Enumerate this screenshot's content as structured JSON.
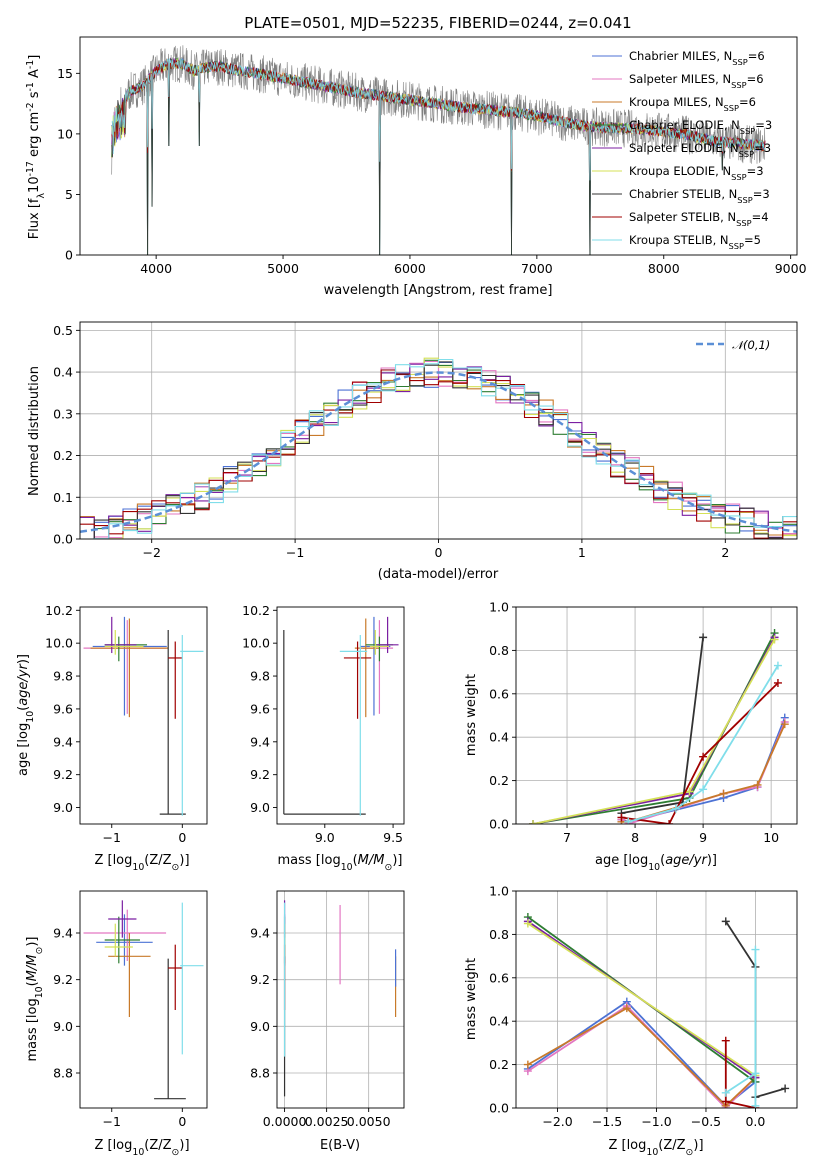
{
  "chart_data": [
    {
      "id": "spectrum",
      "type": "line",
      "title": "PLATE=0501, MJD=52235, FIBERID=0244, z=0.041",
      "xlabel": "wavelength [Angstrom, rest frame]",
      "ylabel": "Flux [f$_\\lambda$10$^{-17}$ erg cm$^{-2}$ s$^{-1}$ A$^{-1}$]",
      "xlim": [
        3400,
        9050
      ],
      "ylim": [
        0,
        18
      ],
      "xticks": [
        4000,
        5000,
        6000,
        7000,
        8000,
        9000
      ],
      "yticks": [
        0,
        5,
        10,
        15
      ],
      "legend_loc": "upper right",
      "series": [
        {
          "name": "Chabrier MILES, N$_{SSP}$=6",
          "color": "#4c72d4"
        },
        {
          "name": "Salpeter MILES, N$_{SSP}$=6",
          "color": "#e377c2"
        },
        {
          "name": "Kroupa MILES, N$_{SSP}$=6",
          "color": "#c87a2a"
        },
        {
          "name": "Chabrier ELODIE, N$_{SSP}$=3",
          "color": "#2e7d32"
        },
        {
          "name": "Salpeter ELODIE, N$_{SSP}$=3",
          "color": "#7b1fa2"
        },
        {
          "name": "Kroupa ELODIE, N$_{SSP}$=3",
          "color": "#d4e157"
        },
        {
          "name": "Chabrier STELIB, N$_{SSP}$=3",
          "color": "#333333"
        },
        {
          "name": "Salpeter STELIB, N$_{SSP}$=4",
          "color": "#a00000"
        },
        {
          "name": "Kroupa STELIB, N$_{SSP}$=5",
          "color": "#80deea"
        }
      ],
      "data_series": {
        "name": "data",
        "color": "#808080"
      },
      "continuum_knots": {
        "x": [
          3650,
          3700,
          3800,
          3900,
          4000,
          4100,
          4200,
          4300,
          4400,
          4500,
          4600,
          4800,
          5000,
          5200,
          5400,
          5600,
          5800,
          6000,
          6200,
          6400,
          6600,
          6800,
          7000,
          7200,
          7400,
          7600,
          7800,
          8000,
          8200,
          8400,
          8600,
          8800
        ],
        "y": [
          11.0,
          12.5,
          13.5,
          14.0,
          15.2,
          15.8,
          15.8,
          15.2,
          15.5,
          15.6,
          15.3,
          15.0,
          14.6,
          14.2,
          13.8,
          13.4,
          13.1,
          12.8,
          12.5,
          12.2,
          12.0,
          11.8,
          11.5,
          11.0,
          10.6,
          10.5,
          10.4,
          10.2,
          9.9,
          9.4,
          9.2,
          9.0
        ]
      },
      "absorption_dips": [
        {
          "x": 3934,
          "y": 0
        },
        {
          "x": 3969,
          "y": 4
        },
        {
          "x": 4102,
          "y": 9
        },
        {
          "x": 4340,
          "y": 9
        },
        {
          "x": 5760,
          "y": 0
        },
        {
          "x": 6800,
          "y": 0
        },
        {
          "x": 7420,
          "y": 0
        },
        {
          "x": 8460,
          "y": 7
        }
      ]
    },
    {
      "id": "residual-histogram",
      "type": "bar",
      "xlabel": "(data-model)/error",
      "ylabel": "Normed distribution",
      "xlim": [
        -2.5,
        2.5
      ],
      "ylim": [
        0,
        0.52
      ],
      "xticks": [
        -2,
        -1,
        0,
        1,
        2
      ],
      "yticks": [
        0.0,
        0.1,
        0.2,
        0.3,
        0.4,
        0.5
      ],
      "ytick_labels": [
        "0.0",
        "0.1",
        "0.2",
        "0.3",
        "0.4",
        "0.5"
      ],
      "bin_width": 0.1,
      "legend": [
        {
          "name": "$\\mathcal{N}(0,1)$",
          "color": "#5b8fd6",
          "style": "dashed"
        }
      ],
      "series_colors": [
        "#4c72d4",
        "#e377c2",
        "#c87a2a",
        "#2e7d32",
        "#7b1fa2",
        "#d4e157",
        "#333333",
        "#a00000",
        "#80deea"
      ],
      "overlay": "normal pdf"
    },
    {
      "id": "age-vs-z",
      "type": "scatter",
      "xlabel": "Z [log$_{10}$(Z/Z$_\\odot$)]",
      "ylabel": "age  [log$_{10}$($age/yr$)]",
      "xlim": [
        -1.45,
        0.35
      ],
      "ylim": [
        8.9,
        10.22
      ],
      "xticks": [
        -1,
        0
      ],
      "yticks": [
        9.0,
        9.2,
        9.4,
        9.6,
        9.8,
        10.0,
        10.2
      ],
      "ytick_labels": [
        "9.0",
        "9.2",
        "9.4",
        "9.6",
        "9.8",
        "10.0",
        "10.2"
      ],
      "points": [
        {
          "color": "#4c72d4",
          "x": -0.82,
          "xerr": [
            0.45,
            0.6
          ],
          "y": 9.98,
          "yerr": [
            0.42,
            0.18
          ]
        },
        {
          "color": "#e377c2",
          "x": -0.78,
          "xerr": [
            0.62,
            0.55
          ],
          "y": 9.97,
          "yerr": [
            0.4,
            0.17
          ]
        },
        {
          "color": "#c87a2a",
          "x": -0.75,
          "xerr": [
            0.55,
            0.55
          ],
          "y": 9.97,
          "yerr": [
            0.42,
            0.18
          ]
        },
        {
          "color": "#2e7d32",
          "x": -0.9,
          "xerr": [
            0.2,
            0.4
          ],
          "y": 9.99,
          "yerr": [
            0.1,
            0.05
          ]
        },
        {
          "color": "#7b1fa2",
          "x": -1.0,
          "xerr": [
            0.1,
            0.35
          ],
          "y": 9.99,
          "yerr": [
            0.05,
            0.17
          ]
        },
        {
          "color": "#d4e157",
          "x": -0.95,
          "xerr": [
            0.15,
            0.4
          ],
          "y": 9.98,
          "yerr": [
            0.05,
            0.1
          ]
        },
        {
          "color": "#333333",
          "x": -0.2,
          "xerr": [
            0.12,
            0.25
          ],
          "y": 8.96,
          "yerr": [
            0,
            1.12
          ]
        },
        {
          "color": "#a00000",
          "x": -0.1,
          "xerr": [
            0.1,
            0.1
          ],
          "y": 9.91,
          "yerr": [
            0.37,
            0.1
          ]
        },
        {
          "color": "#80deea",
          "x": 0.0,
          "xerr": [
            0.03,
            0.3
          ],
          "y": 9.95,
          "yerr": [
            1.0,
            0.1
          ]
        }
      ]
    },
    {
      "id": "age-vs-mass",
      "type": "scatter",
      "xlabel": "mass [log$_{10}$($M/M_\\odot$)]",
      "ylabel": "",
      "xlim": [
        8.65,
        9.58
      ],
      "ylim": [
        8.9,
        10.22
      ],
      "xticks": [
        9.0,
        9.5
      ],
      "xtick_labels": [
        "9.0",
        "9.5"
      ],
      "yticks": [
        9.0,
        9.2,
        9.4,
        9.6,
        9.8,
        10.0,
        10.2
      ],
      "ytick_labels": [
        "9.0",
        "9.2",
        "9.4",
        "9.6",
        "9.8",
        "10.0",
        "10.2"
      ],
      "points": [
        {
          "color": "#4c72d4",
          "x": 9.36,
          "xerr": [
            0.1,
            0.12
          ],
          "y": 9.98,
          "yerr": [
            0.42,
            0.18
          ]
        },
        {
          "color": "#e377c2",
          "x": 9.4,
          "xerr": [
            0.12,
            0.1
          ],
          "y": 9.97,
          "yerr": [
            0.4,
            0.17
          ]
        },
        {
          "color": "#c87a2a",
          "x": 9.3,
          "xerr": [
            0.08,
            0.1
          ],
          "y": 9.97,
          "yerr": [
            0.42,
            0.18
          ]
        },
        {
          "color": "#2e7d32",
          "x": 9.4,
          "xerr": [
            0.1,
            0.1
          ],
          "y": 9.99,
          "yerr": [
            0.1,
            0.05
          ]
        },
        {
          "color": "#7b1fa2",
          "x": 9.46,
          "xerr": [
            0.08,
            0.08
          ],
          "y": 9.99,
          "yerr": [
            0.05,
            0.17
          ]
        },
        {
          "color": "#d4e157",
          "x": 9.37,
          "xerr": [
            0.04,
            0.1
          ],
          "y": 9.98,
          "yerr": [
            0.05,
            0.1
          ]
        },
        {
          "color": "#333333",
          "x": 8.7,
          "xerr": [
            0,
            0.6
          ],
          "y": 8.96,
          "yerr": [
            0,
            1.12
          ]
        },
        {
          "color": "#a00000",
          "x": 9.24,
          "xerr": [
            0.1,
            0.1
          ],
          "y": 9.91,
          "yerr": [
            0.37,
            0.1
          ]
        },
        {
          "color": "#80deea",
          "x": 9.26,
          "xerr": [
            0.15,
            0.05
          ],
          "y": 9.95,
          "yerr": [
            1.0,
            0.1
          ]
        }
      ]
    },
    {
      "id": "mass-weight-vs-age",
      "type": "line",
      "xlabel": "age  [log$_{10}$($age/yr$)]",
      "ylabel": "mass weight",
      "xlim": [
        6.25,
        10.38
      ],
      "ylim": [
        0,
        1.0
      ],
      "xticks": [
        7,
        8,
        9,
        10
      ],
      "yticks": [
        0.0,
        0.2,
        0.4,
        0.6,
        0.8,
        1.0
      ],
      "ytick_labels": [
        "0.0",
        "0.2",
        "0.4",
        "0.6",
        "0.8",
        "1.0"
      ],
      "grid": true,
      "series": [
        {
          "color": "#4c72d4",
          "x": [
            7.8,
            7.9,
            9.3,
            9.8,
            10.2
          ],
          "y": [
            0.02,
            0.01,
            0.12,
            0.17,
            0.49
          ]
        },
        {
          "color": "#e377c2",
          "x": [
            7.8,
            7.9,
            9.3,
            9.8,
            10.2
          ],
          "y": [
            0.02,
            0.0,
            0.14,
            0.17,
            0.47
          ]
        },
        {
          "color": "#c87a2a",
          "x": [
            7.8,
            7.9,
            9.3,
            9.8,
            10.2
          ],
          "y": [
            0.01,
            0.01,
            0.14,
            0.18,
            0.46
          ]
        },
        {
          "color": "#2e7d32",
          "x": [
            6.5,
            8.8,
            10.05
          ],
          "y": [
            0.0,
            0.12,
            0.88
          ]
        },
        {
          "color": "#7b1fa2",
          "x": [
            6.5,
            8.8,
            10.05
          ],
          "y": [
            0.0,
            0.14,
            0.86
          ]
        },
        {
          "color": "#d4e157",
          "x": [
            6.5,
            8.8,
            10.05
          ],
          "y": [
            0.0,
            0.15,
            0.85
          ]
        },
        {
          "color": "#333333",
          "x": [
            7.8,
            8.7,
            9.0
          ],
          "y": [
            0.05,
            0.1,
            0.86
          ]
        },
        {
          "color": "#a00000",
          "x": [
            7.8,
            8.5,
            9.0,
            10.1
          ],
          "y": [
            0.03,
            0.0,
            0.31,
            0.65
          ]
        },
        {
          "color": "#80deea",
          "x": [
            7.9,
            8.6,
            9.0,
            10.1
          ],
          "y": [
            0.01,
            0.07,
            0.16,
            0.73
          ]
        }
      ]
    },
    {
      "id": "mass-vs-z",
      "type": "scatter",
      "xlabel": "Z [log$_{10}$(Z/Z$_\\odot$)]",
      "ylabel": "mass [log$_{10}$($M/M_\\odot$)]",
      "xlim": [
        -1.45,
        0.35
      ],
      "ylim": [
        8.65,
        9.58
      ],
      "xticks": [
        -1,
        0
      ],
      "yticks": [
        8.8,
        9.0,
        9.2,
        9.4
      ],
      "ytick_labels": [
        "8.8",
        "9.0",
        "9.2",
        "9.4"
      ],
      "points": [
        {
          "color": "#4c72d4",
          "x": -0.82,
          "xerr": [
            0.4,
            0.4
          ],
          "y": 9.36,
          "yerr": [
            0.1,
            0.12
          ]
        },
        {
          "color": "#e377c2",
          "x": -0.78,
          "xerr": [
            0.62,
            0.55
          ],
          "y": 9.4,
          "yerr": [
            0.12,
            0.1
          ]
        },
        {
          "color": "#c87a2a",
          "x": -0.75,
          "xerr": [
            0.3,
            0.3
          ],
          "y": 9.3,
          "yerr": [
            0.26,
            0.1
          ]
        },
        {
          "color": "#2e7d32",
          "x": -0.9,
          "xerr": [
            0.2,
            0.3
          ],
          "y": 9.37,
          "yerr": [
            0.1,
            0.1
          ]
        },
        {
          "color": "#7b1fa2",
          "x": -0.85,
          "xerr": [
            0.2,
            0.2
          ],
          "y": 9.46,
          "yerr": [
            0.08,
            0.08
          ]
        },
        {
          "color": "#d4e157",
          "x": -0.95,
          "xerr": [
            0.15,
            0.25
          ],
          "y": 9.34,
          "yerr": [
            0.04,
            0.1
          ]
        },
        {
          "color": "#333333",
          "x": -0.2,
          "xerr": [
            0.2,
            0.25
          ],
          "y": 8.69,
          "yerr": [
            0,
            0.6
          ]
        },
        {
          "color": "#a00000",
          "x": -0.1,
          "xerr": [
            0.1,
            0.1
          ],
          "y": 9.25,
          "yerr": [
            0.18,
            0.1
          ]
        },
        {
          "color": "#80deea",
          "x": 0.0,
          "xerr": [
            0.03,
            0.3
          ],
          "y": 9.26,
          "yerr": [
            0.38,
            0.27
          ]
        }
      ]
    },
    {
      "id": "mass-vs-ebv",
      "type": "scatter",
      "xlabel": "E(B-V)",
      "ylabel": "",
      "xlim": [
        -0.00045,
        0.0071
      ],
      "ylim": [
        8.65,
        9.58
      ],
      "xticks": [
        0.0,
        0.0025,
        0.005
      ],
      "xtick_labels": [
        "0.0000",
        "0.0025",
        "0.0050"
      ],
      "yticks": [
        8.8,
        9.0,
        9.2,
        9.4
      ],
      "ytick_labels": [
        "8.8",
        "9.0",
        "9.2",
        "9.4"
      ],
      "points": [
        {
          "color": "#4c72d4",
          "x": 0.0,
          "y": 9.36,
          "yerr": [
            0.1,
            0.12
          ]
        },
        {
          "color": "#e377c2",
          "x": 0.0033,
          "y": 9.35,
          "yerr": [
            0.17,
            0.17
          ]
        },
        {
          "color": "#c87a2a",
          "x": 0.0066,
          "y": 9.17,
          "yerr": [
            0.13,
            0.13
          ]
        },
        {
          "color": "#2e7d32",
          "x": 0.0,
          "y": 9.37,
          "yerr": [
            0.1,
            0.1
          ]
        },
        {
          "color": "#7b1fa2",
          "x": 0.0,
          "y": 9.46,
          "yerr": [
            0.08,
            0.08
          ]
        },
        {
          "color": "#d4e157",
          "x": 0.0,
          "y": 9.34,
          "yerr": [
            0.04,
            0.1
          ]
        },
        {
          "color": "#333333",
          "x": 0.0,
          "y": 9.0,
          "yerr": [
            0.3,
            0.3
          ]
        },
        {
          "color": "#a00000",
          "x": 0.0,
          "y": 9.25,
          "yerr": [
            0.18,
            0.1
          ]
        },
        {
          "color": "#80deea",
          "x": 0.0,
          "y": 9.2,
          "yerr": [
            0.33,
            0.33
          ]
        },
        {
          "color": "#4c72d4",
          "x": 0.0066,
          "y": 9.25,
          "yerr": [
            0.08,
            0.08
          ]
        }
      ]
    },
    {
      "id": "mass-weight-vs-z",
      "type": "line",
      "xlabel": "Z [log$_{10}$(Z/Z$_\\odot$)]",
      "ylabel": "mass weight",
      "xlim": [
        -2.42,
        0.42
      ],
      "ylim": [
        0,
        1.0
      ],
      "xticks": [
        -2.0,
        -1.5,
        -1.0,
        -0.5,
        0.0
      ],
      "xtick_labels": [
        "−2.0",
        "−1.5",
        "−1.0",
        "−0.5",
        "0.0"
      ],
      "yticks": [
        0.0,
        0.2,
        0.4,
        0.6,
        0.8,
        1.0
      ],
      "ytick_labels": [
        "0.0",
        "0.2",
        "0.4",
        "0.6",
        "0.8",
        "1.0"
      ],
      "grid": true,
      "series": [
        {
          "color": "#4c72d4",
          "x": [
            -2.3,
            -1.3,
            -0.3,
            0.0
          ],
          "y": [
            0.18,
            0.49,
            0.01,
            0.12
          ]
        },
        {
          "color": "#e377c2",
          "x": [
            -2.3,
            -1.3,
            -0.3,
            0.0
          ],
          "y": [
            0.17,
            0.47,
            0.0,
            0.14
          ]
        },
        {
          "color": "#c87a2a",
          "x": [
            -2.3,
            -1.3,
            -0.3,
            0.0
          ],
          "y": [
            0.2,
            0.46,
            0.01,
            0.14
          ]
        },
        {
          "color": "#2e7d32",
          "x": [
            -2.3,
            0.0
          ],
          "y": [
            0.88,
            0.12
          ]
        },
        {
          "color": "#7b1fa2",
          "x": [
            -2.3,
            0.0
          ],
          "y": [
            0.86,
            0.14
          ]
        },
        {
          "color": "#d4e157",
          "x": [
            -2.3,
            0.0
          ],
          "y": [
            0.85,
            0.15
          ]
        },
        {
          "color": "#333333",
          "x": [
            -0.3,
            0.0,
            0.0,
            0.3
          ],
          "y": [
            0.86,
            0.65,
            0.05,
            0.09
          ]
        },
        {
          "color": "#a00000",
          "x": [
            -0.3,
            -0.3,
            0.0
          ],
          "y": [
            0.31,
            0.03,
            0.0
          ]
        },
        {
          "color": "#80deea",
          "x": [
            -0.3,
            0.0,
            0.0,
            0.0
          ],
          "y": [
            0.07,
            0.16,
            0.73,
            0.01
          ]
        }
      ]
    }
  ]
}
